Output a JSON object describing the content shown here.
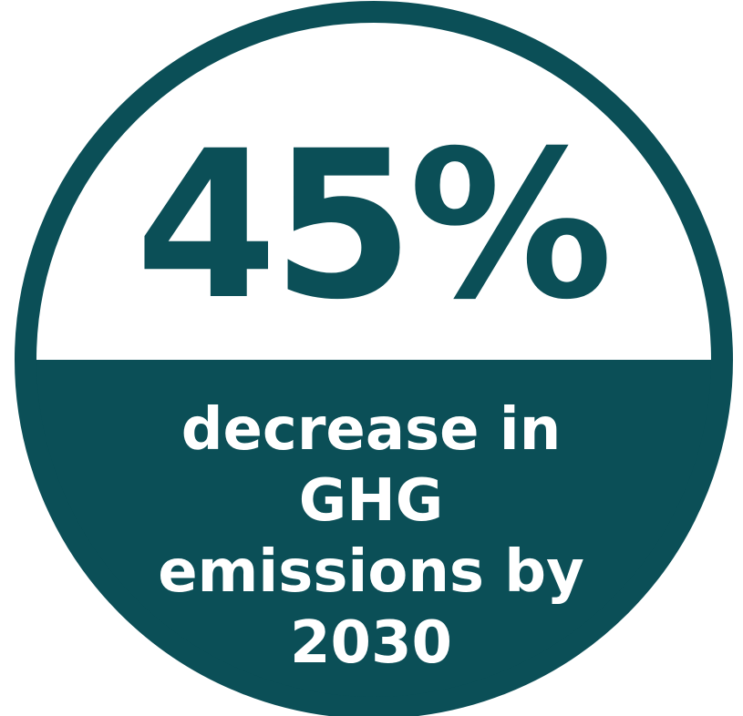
{
  "stat": {
    "value": "45%",
    "lines": [
      "decrease in",
      "GHG",
      "emissions by",
      "2030"
    ]
  },
  "colors": {
    "primary": "#0b4f57",
    "background": "#ffffff",
    "text_on_primary": "#ffffff"
  }
}
